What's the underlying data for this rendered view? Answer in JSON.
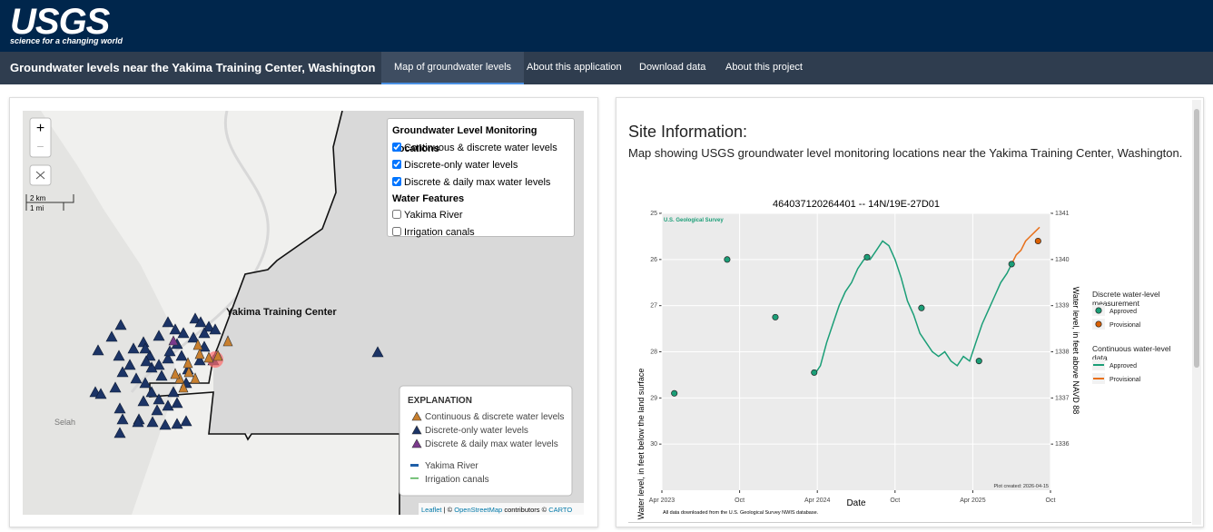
{
  "header": {
    "logo": "USGS",
    "tagline": "science for a changing world"
  },
  "nav": {
    "title": "Groundwater levels near the Yakima Training Center, Washington",
    "tabs": [
      "Map of groundwater levels",
      "About this application",
      "Download data",
      "About this project"
    ]
  },
  "map": {
    "zoom_in": "+",
    "zoom_out": "−",
    "scale": [
      "2 km",
      "1 mi"
    ],
    "places": [
      "Yakima Training Center",
      "Selah"
    ],
    "layers": {
      "title": "Groundwater Level Monitoring Locations",
      "items": [
        {
          "label": "Continuous & discrete water levels",
          "checked": true
        },
        {
          "label": "Discrete-only water levels",
          "checked": true
        },
        {
          "label": "Discrete & daily max water levels",
          "checked": true
        }
      ],
      "features_title": "Water Features",
      "features": [
        {
          "label": "Yakima River",
          "checked": false
        },
        {
          "label": "Irrigation canals",
          "checked": false
        }
      ]
    },
    "explanation": {
      "title": "EXPLANATION",
      "items": [
        "Continuous & discrete water levels",
        "Discrete-only water levels",
        "Discrete & daily max water levels",
        "Yakima River",
        "Irrigation canals"
      ]
    },
    "attribution": [
      "Leaflet",
      "| ©",
      "OpenStreetMap",
      "contributors ©",
      "CARTO"
    ]
  },
  "site_info": {
    "heading": "Site Information:",
    "description": "Map showing USGS groundwater level monitoring locations near the Yakima Training Center, Washington."
  },
  "chart_data": {
    "type": "line",
    "title": "464037120264401 -- 14N/19E-27D01",
    "subtitle": "U.S. Geological Survey",
    "x_label": "Date",
    "y_label": "Water level, in feet below the land surface",
    "y2_label": "Water level, in feet above NAVD 88",
    "footnote": "All data downloaded from the U.S. Geological Survey NWIS database.",
    "created": "Plot created: 2026-04-15",
    "xlim": [
      2023.25,
      2025.75
    ],
    "xticks": [
      {
        "value": 2023.25,
        "label": "Apr 2023"
      },
      {
        "value": 2023.75,
        "label": "Oct"
      },
      {
        "value": 2024.25,
        "label": "Apr 2024"
      },
      {
        "value": 2024.75,
        "label": "Oct"
      },
      {
        "value": 2025.25,
        "label": "Apr 2025"
      },
      {
        "value": 2025.75,
        "label": "Oct"
      }
    ],
    "ylim": [
      25,
      31
    ],
    "y_inverted": true,
    "yticks": [
      25,
      26,
      27,
      28,
      29,
      30
    ],
    "y2lim": [
      1341,
      1335
    ],
    "y2ticks": [
      1341,
      1340,
      1339,
      1338,
      1337,
      1336
    ],
    "grid": true,
    "legend_groups": [
      "Discrete water-level measurement",
      "Continuous water-level data"
    ],
    "series": [
      {
        "name": "Approved",
        "group": 0,
        "kind": "scatter",
        "color": "#1b9e77",
        "x": [
          2023.33,
          2023.67,
          2023.98,
          2024.23,
          2024.57,
          2024.92,
          2025.29,
          2025.5
        ],
        "values": [
          28.9,
          26.0,
          27.25,
          28.45,
          25.95,
          27.05,
          28.2,
          26.1
        ]
      },
      {
        "name": "Provisional",
        "group": 0,
        "kind": "scatter",
        "color": "#d95f02",
        "x": [
          2025.67
        ],
        "values": [
          25.6
        ]
      },
      {
        "name": "Approved",
        "group": 1,
        "kind": "line",
        "color": "#1b9e77",
        "x": [
          2024.23,
          2024.27,
          2024.31,
          2024.35,
          2024.39,
          2024.43,
          2024.47,
          2024.51,
          2024.55,
          2024.59,
          2024.63,
          2024.67,
          2024.71,
          2024.75,
          2024.79,
          2024.83,
          2024.87,
          2024.91,
          2024.95,
          2024.99,
          2025.03,
          2025.07,
          2025.11,
          2025.15,
          2025.19,
          2025.23,
          2025.27,
          2025.31,
          2025.35,
          2025.39,
          2025.43,
          2025.47,
          2025.5
        ],
        "values": [
          28.5,
          28.3,
          27.8,
          27.4,
          27.0,
          26.7,
          26.5,
          26.2,
          26.0,
          26.0,
          25.8,
          25.6,
          25.7,
          26.0,
          26.4,
          26.9,
          27.2,
          27.6,
          27.8,
          28.0,
          28.1,
          28.0,
          28.2,
          28.3,
          28.1,
          28.2,
          27.8,
          27.4,
          27.1,
          26.8,
          26.5,
          26.3,
          26.1
        ]
      },
      {
        "name": "Provisional",
        "group": 1,
        "kind": "line",
        "color": "#e8701a",
        "x": [
          2025.5,
          2025.53,
          2025.56,
          2025.59,
          2025.62,
          2025.65,
          2025.68
        ],
        "values": [
          26.1,
          25.9,
          25.8,
          25.6,
          25.5,
          25.4,
          25.3
        ]
      }
    ]
  }
}
